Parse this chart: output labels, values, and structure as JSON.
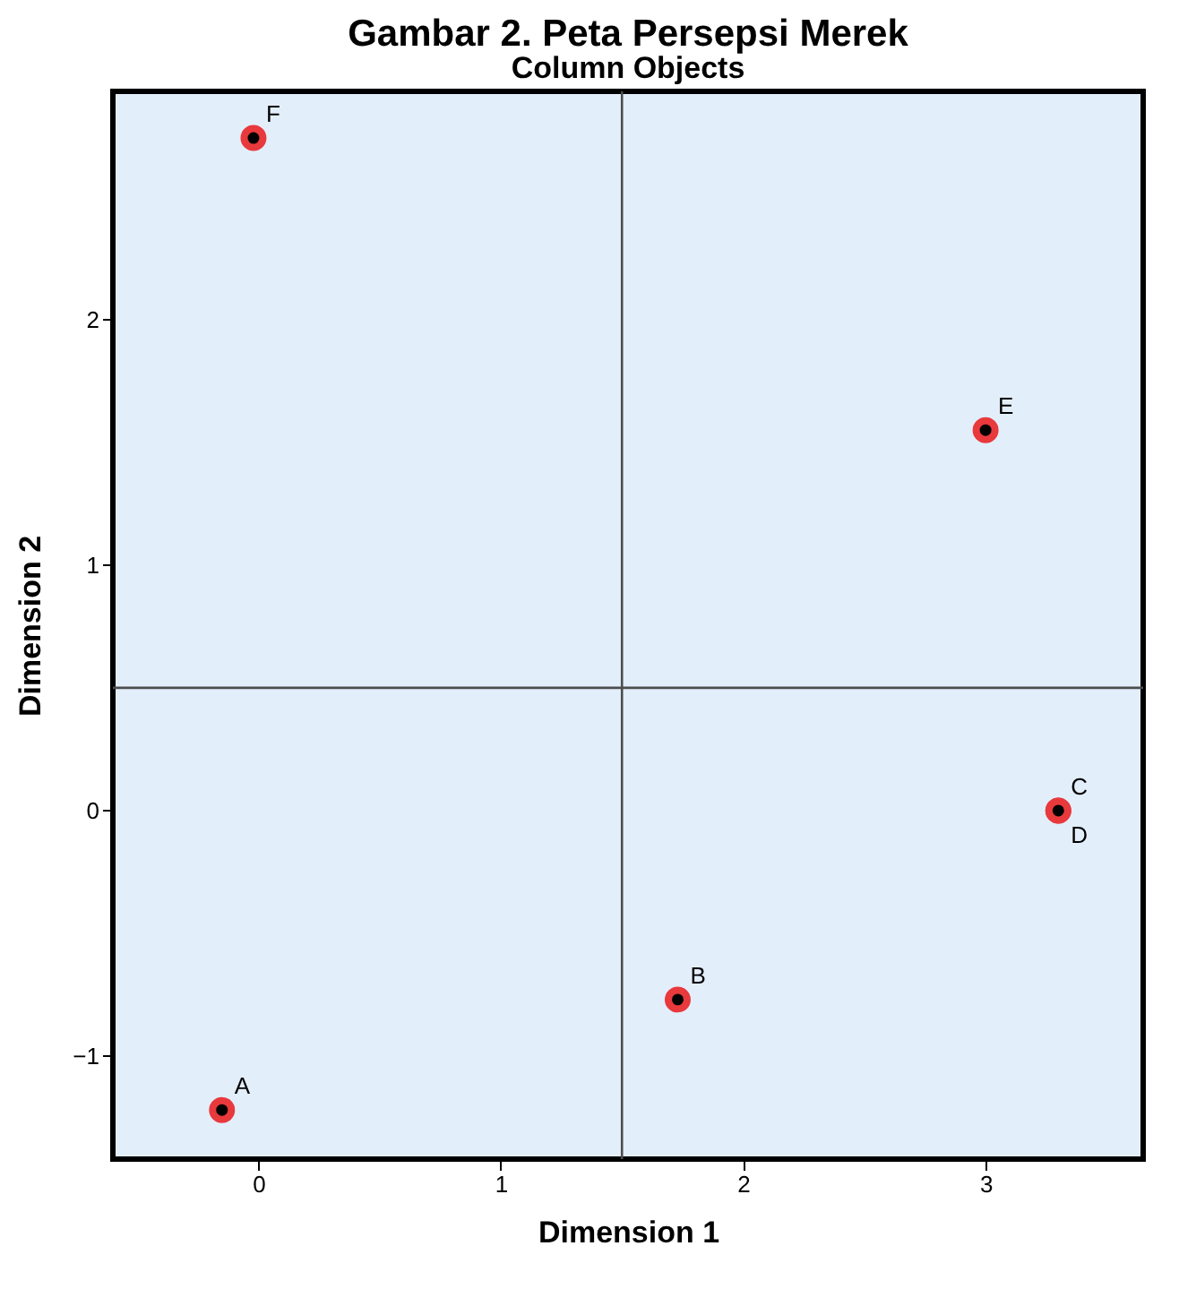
{
  "chart_data": {
    "type": "scatter",
    "title": "Gambar 2. Peta Persepsi Merek",
    "subtitle": "Column Objects",
    "xlabel": "Dimension 1",
    "ylabel": "Dimension 2",
    "x": [
      -0.15,
      1.73,
      3.3,
      3.3,
      3.0,
      -0.02
    ],
    "series": [
      {
        "color": "#e8393c",
        "values": [
          -1.22,
          -0.77,
          0.0,
          0.0,
          1.55,
          2.74
        ]
      }
    ],
    "annotations": [
      {
        "text": "A",
        "x": -0.15,
        "y": -1.22
      },
      {
        "text": "B",
        "x": 1.73,
        "y": -0.77
      },
      {
        "text": "C",
        "x": 3.3,
        "y": 0.0
      },
      {
        "text": "D",
        "x": 3.3,
        "y": 0.0
      },
      {
        "text": "E",
        "x": 3.0,
        "y": 1.55
      },
      {
        "text": "F",
        "x": -0.02,
        "y": 2.74
      }
    ],
    "ref_lines": [
      {
        "axis": "x",
        "value": 1.5,
        "color": "#4d4d4d"
      },
      {
        "axis": "y",
        "value": 0.5,
        "color": "#4d4d4d"
      }
    ],
    "xlim": [
      -0.6,
      3.65
    ],
    "ylim": [
      -1.42,
      2.93
    ],
    "xticks": [
      0,
      1,
      2,
      3
    ],
    "yticks": [
      -1,
      0,
      1,
      2
    ],
    "grid": false,
    "marker": "circle"
  }
}
